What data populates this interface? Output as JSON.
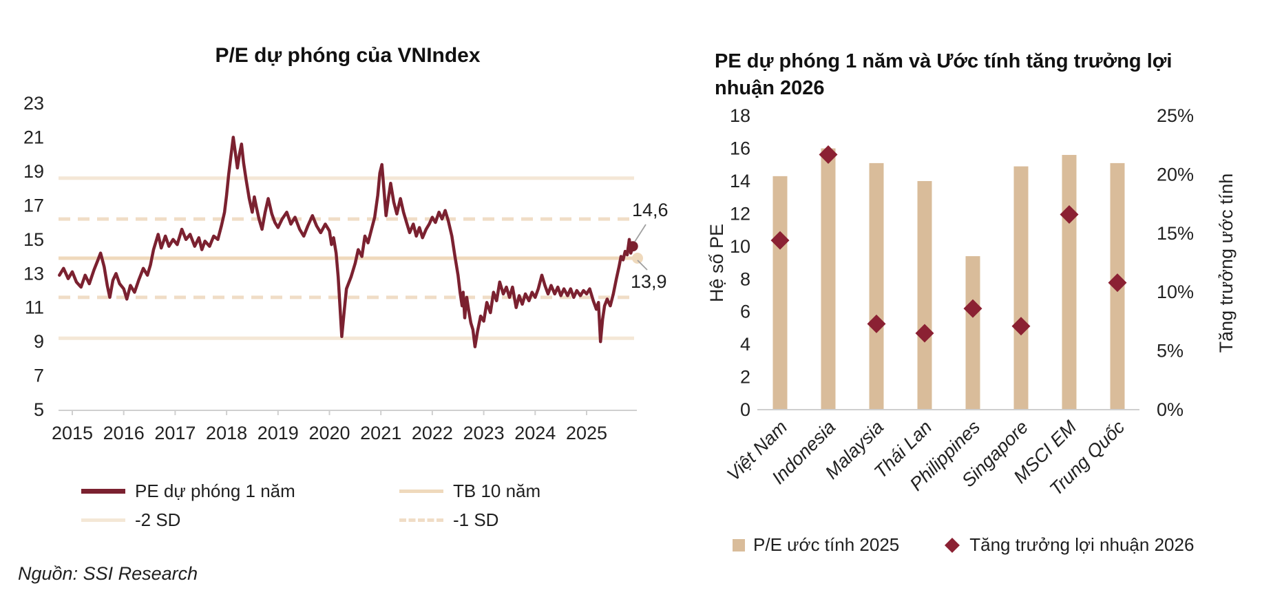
{
  "source_note": "Nguồn: SSI Research",
  "colors": {
    "maroon_line": "#7b2130",
    "maroon_marker": "#8b2133",
    "tan_bar": "#d9bc9a",
    "beige_solid": "#f4e7d6",
    "beige_avg": "#efd9bc",
    "beige_dashed": "#f0ddc6",
    "axis": "#cfcfcf",
    "leader": "#a0a0a0",
    "text": "#1f1f1f"
  },
  "left_chart": {
    "title": "P/E dự phóng của VNIndex",
    "annotation_last": "14,6",
    "annotation_avg": "13,9",
    "legend": {
      "series": "PE dự phóng 1 năm",
      "avg": "TB 10 năm",
      "minus2sd": "-2 SD",
      "minus1sd": "-1 SD"
    }
  },
  "right_chart": {
    "title": "PE dự phóng 1 năm và Ước tính tăng trưởng lợi nhuận 2026",
    "ylabel_left": "Hệ số PE",
    "ylabel_right": "Tăng trưởng ước tính",
    "legend": {
      "bars": "P/E ước tính 2025",
      "diamonds": "Tăng trưởng lợi nhuận 2026"
    }
  },
  "chart_data": [
    {
      "type": "line",
      "title": "P/E dự phóng của VNIndex",
      "series_name": "PE dự phóng 1 năm",
      "x_ticks": [
        "2015",
        "2016",
        "2017",
        "2018",
        "2019",
        "2020",
        "2021",
        "2022",
        "2023",
        "2024",
        "2025"
      ],
      "y_ticks": [
        5,
        7,
        9,
        11,
        13,
        15,
        17,
        19,
        21,
        23
      ],
      "ylim": [
        5,
        23
      ],
      "xlim_years": [
        2014.7,
        2026.0
      ],
      "grid": false,
      "legend_position": "bottom",
      "last_value": 14.6,
      "avg_value": 13.9,
      "reference_lines": [
        {
          "name": "plus2sd",
          "value": 18.6,
          "style": "solid"
        },
        {
          "name": "plus1sd",
          "value": 16.2,
          "style": "dashed"
        },
        {
          "name": "avg",
          "value": 13.9,
          "style": "solid-avg",
          "label": "TB 10 năm"
        },
        {
          "name": "minus1sd",
          "value": 11.6,
          "style": "dashed",
          "label": "-1 SD"
        },
        {
          "name": "minus2sd",
          "value": 9.2,
          "style": "solid",
          "label": "-2 SD"
        }
      ],
      "points": [
        [
          2014.75,
          12.9
        ],
        [
          2014.83,
          13.3
        ],
        [
          2014.92,
          12.7
        ],
        [
          2015.0,
          13.1
        ],
        [
          2015.08,
          12.5
        ],
        [
          2015.17,
          12.2
        ],
        [
          2015.25,
          12.9
        ],
        [
          2015.33,
          12.4
        ],
        [
          2015.42,
          13.2
        ],
        [
          2015.5,
          13.8
        ],
        [
          2015.55,
          14.2
        ],
        [
          2015.62,
          13.4
        ],
        [
          2015.68,
          12.3
        ],
        [
          2015.73,
          11.6
        ],
        [
          2015.79,
          12.6
        ],
        [
          2015.85,
          13.0
        ],
        [
          2015.92,
          12.4
        ],
        [
          2016.0,
          12.1
        ],
        [
          2016.06,
          11.5
        ],
        [
          2016.13,
          12.3
        ],
        [
          2016.21,
          11.9
        ],
        [
          2016.29,
          12.6
        ],
        [
          2016.38,
          13.3
        ],
        [
          2016.46,
          12.9
        ],
        [
          2016.52,
          13.5
        ],
        [
          2016.58,
          14.4
        ],
        [
          2016.67,
          15.3
        ],
        [
          2016.73,
          14.5
        ],
        [
          2016.81,
          15.2
        ],
        [
          2016.88,
          14.6
        ],
        [
          2016.96,
          15.0
        ],
        [
          2017.04,
          14.7
        ],
        [
          2017.13,
          15.6
        ],
        [
          2017.21,
          15.0
        ],
        [
          2017.29,
          15.3
        ],
        [
          2017.38,
          14.6
        ],
        [
          2017.46,
          15.1
        ],
        [
          2017.52,
          14.4
        ],
        [
          2017.58,
          14.9
        ],
        [
          2017.67,
          14.6
        ],
        [
          2017.75,
          15.2
        ],
        [
          2017.83,
          15.0
        ],
        [
          2017.9,
          15.8
        ],
        [
          2017.96,
          16.6
        ],
        [
          2018.0,
          17.6
        ],
        [
          2018.04,
          18.8
        ],
        [
          2018.08,
          19.8
        ],
        [
          2018.13,
          21.0
        ],
        [
          2018.17,
          20.1
        ],
        [
          2018.21,
          19.2
        ],
        [
          2018.25,
          20.0
        ],
        [
          2018.29,
          20.6
        ],
        [
          2018.33,
          19.5
        ],
        [
          2018.38,
          18.5
        ],
        [
          2018.44,
          17.4
        ],
        [
          2018.5,
          16.6
        ],
        [
          2018.54,
          17.5
        ],
        [
          2018.58,
          16.9
        ],
        [
          2018.63,
          16.2
        ],
        [
          2018.69,
          15.6
        ],
        [
          2018.75,
          16.6
        ],
        [
          2018.81,
          17.4
        ],
        [
          2018.88,
          16.5
        ],
        [
          2018.94,
          16.0
        ],
        [
          2019.0,
          15.7
        ],
        [
          2019.08,
          16.2
        ],
        [
          2019.17,
          16.6
        ],
        [
          2019.25,
          15.9
        ],
        [
          2019.33,
          16.3
        ],
        [
          2019.42,
          15.6
        ],
        [
          2019.5,
          15.2
        ],
        [
          2019.58,
          15.8
        ],
        [
          2019.67,
          16.4
        ],
        [
          2019.75,
          15.8
        ],
        [
          2019.83,
          15.4
        ],
        [
          2019.92,
          15.9
        ],
        [
          2020.0,
          15.5
        ],
        [
          2020.04,
          14.7
        ],
        [
          2020.08,
          15.1
        ],
        [
          2020.13,
          14.2
        ],
        [
          2020.17,
          12.8
        ],
        [
          2020.21,
          10.8
        ],
        [
          2020.24,
          9.3
        ],
        [
          2020.29,
          10.9
        ],
        [
          2020.33,
          12.1
        ],
        [
          2020.42,
          12.8
        ],
        [
          2020.5,
          13.6
        ],
        [
          2020.56,
          14.4
        ],
        [
          2020.63,
          14.0
        ],
        [
          2020.69,
          15.2
        ],
        [
          2020.75,
          14.8
        ],
        [
          2020.81,
          15.5
        ],
        [
          2020.88,
          16.3
        ],
        [
          2020.94,
          17.6
        ],
        [
          2020.98,
          18.9
        ],
        [
          2021.02,
          19.4
        ],
        [
          2021.06,
          17.9
        ],
        [
          2021.1,
          16.4
        ],
        [
          2021.15,
          17.5
        ],
        [
          2021.19,
          18.3
        ],
        [
          2021.25,
          17.2
        ],
        [
          2021.31,
          16.5
        ],
        [
          2021.38,
          17.4
        ],
        [
          2021.44,
          16.6
        ],
        [
          2021.5,
          16.0
        ],
        [
          2021.56,
          15.4
        ],
        [
          2021.63,
          15.9
        ],
        [
          2021.69,
          15.2
        ],
        [
          2021.75,
          15.7
        ],
        [
          2021.81,
          15.1
        ],
        [
          2021.88,
          15.6
        ],
        [
          2021.94,
          15.9
        ],
        [
          2022.0,
          16.3
        ],
        [
          2022.06,
          16.0
        ],
        [
          2022.13,
          16.6
        ],
        [
          2022.19,
          16.2
        ],
        [
          2022.25,
          16.7
        ],
        [
          2022.31,
          16.1
        ],
        [
          2022.38,
          15.2
        ],
        [
          2022.44,
          14.0
        ],
        [
          2022.5,
          12.9
        ],
        [
          2022.54,
          11.9
        ],
        [
          2022.58,
          11.1
        ],
        [
          2022.6,
          11.9
        ],
        [
          2022.63,
          10.4
        ],
        [
          2022.67,
          11.6
        ],
        [
          2022.71,
          10.8
        ],
        [
          2022.75,
          10.1
        ],
        [
          2022.79,
          9.7
        ],
        [
          2022.83,
          8.7
        ],
        [
          2022.88,
          9.6
        ],
        [
          2022.94,
          10.5
        ],
        [
          2023.0,
          10.2
        ],
        [
          2023.06,
          11.3
        ],
        [
          2023.13,
          10.7
        ],
        [
          2023.19,
          11.9
        ],
        [
          2023.25,
          11.4
        ],
        [
          2023.31,
          12.5
        ],
        [
          2023.38,
          11.8
        ],
        [
          2023.44,
          12.2
        ],
        [
          2023.5,
          11.6
        ],
        [
          2023.56,
          12.2
        ],
        [
          2023.63,
          11.0
        ],
        [
          2023.69,
          11.7
        ],
        [
          2023.75,
          11.2
        ],
        [
          2023.81,
          11.8
        ],
        [
          2023.88,
          11.4
        ],
        [
          2023.94,
          11.9
        ],
        [
          2024.0,
          11.6
        ],
        [
          2024.06,
          12.1
        ],
        [
          2024.13,
          12.9
        ],
        [
          2024.19,
          12.3
        ],
        [
          2024.25,
          11.8
        ],
        [
          2024.31,
          12.3
        ],
        [
          2024.38,
          11.8
        ],
        [
          2024.44,
          12.2
        ],
        [
          2024.5,
          11.7
        ],
        [
          2024.56,
          12.1
        ],
        [
          2024.63,
          11.7
        ],
        [
          2024.69,
          12.1
        ],
        [
          2024.75,
          11.6
        ],
        [
          2024.81,
          12.0
        ],
        [
          2024.88,
          11.7
        ],
        [
          2024.94,
          12.0
        ],
        [
          2025.0,
          11.8
        ],
        [
          2025.06,
          12.1
        ],
        [
          2025.13,
          11.4
        ],
        [
          2025.19,
          10.9
        ],
        [
          2025.23,
          11.3
        ],
        [
          2025.27,
          9.0
        ],
        [
          2025.31,
          10.3
        ],
        [
          2025.35,
          11.1
        ],
        [
          2025.4,
          11.5
        ],
        [
          2025.46,
          11.1
        ],
        [
          2025.52,
          11.8
        ],
        [
          2025.58,
          12.7
        ],
        [
          2025.63,
          13.4
        ],
        [
          2025.67,
          14.0
        ],
        [
          2025.71,
          13.8
        ],
        [
          2025.75,
          14.3
        ],
        [
          2025.79,
          14.1
        ],
        [
          2025.83,
          15.0
        ],
        [
          2025.86,
          14.2
        ],
        [
          2025.9,
          14.6
        ]
      ]
    },
    {
      "type": "bar",
      "title": "PE dự phóng 1 năm và Ước tính tăng trưởng lợi nhuận 2026",
      "categories": [
        "Việt Nam",
        "Indonesia",
        "Malaysia",
        "Thái Lan",
        "Philippines",
        "Singapore",
        "MSCI EM",
        "Trung Quốc"
      ],
      "series": [
        {
          "name": "P/E ước tính 2025",
          "type": "bar",
          "axis": "left",
          "values": [
            14.3,
            16.0,
            15.1,
            14.0,
            9.4,
            14.9,
            15.6,
            15.1
          ]
        },
        {
          "name": "Tăng trưởng lợi nhuận 2026",
          "type": "scatter-diamond",
          "axis": "right",
          "values_pct": [
            14.4,
            21.7,
            7.3,
            6.5,
            8.6,
            7.1,
            16.6,
            10.8
          ]
        }
      ],
      "ylabel_left": "Hệ số PE",
      "ylabel_right": "Tăng trưởng ước tính",
      "ylim_left": [
        0,
        18
      ],
      "y_ticks_left": [
        0,
        2,
        4,
        6,
        8,
        10,
        12,
        14,
        16,
        18
      ],
      "ylim_right_pct": [
        0,
        25
      ],
      "y_ticks_right_pct": [
        "0%",
        "5%",
        "10%",
        "15%",
        "20%",
        "25%"
      ],
      "grid": false,
      "legend_position": "bottom"
    }
  ]
}
